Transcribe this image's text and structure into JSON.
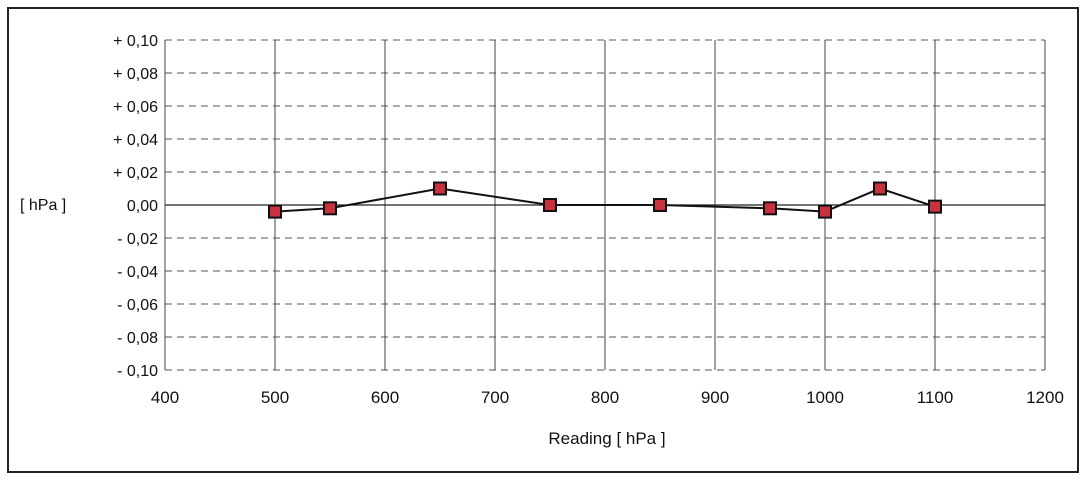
{
  "chart_data": {
    "type": "line",
    "title": "",
    "xlabel": "Reading [ hPa ]",
    "ylabel": "[ hPa ]",
    "xlim": [
      400,
      1200
    ],
    "ylim": [
      -0.1,
      0.1
    ],
    "x_ticks": [
      400,
      500,
      600,
      700,
      800,
      900,
      1000,
      1100,
      1200
    ],
    "y_ticks": [
      0.1,
      0.08,
      0.06,
      0.04,
      0.02,
      0.0,
      -0.02,
      -0.04,
      -0.06,
      -0.08,
      -0.1
    ],
    "y_tick_labels": [
      "+ 0,10",
      "+ 0,08",
      "+ 0,06",
      "+ 0,04",
      "+ 0,02",
      "0,00",
      "- 0,02",
      "- 0,04",
      "- 0,06",
      "- 0,08",
      "- 0,10"
    ],
    "grid": {
      "vertical": "solid",
      "horizontal": "dashed"
    },
    "legend": "none",
    "series": [
      {
        "x": [
          500,
          550,
          650,
          750,
          850,
          950,
          1000,
          1050,
          1100
        ],
        "y": [
          -0.004,
          -0.002,
          0.01,
          0.0,
          0.0,
          -0.002,
          -0.004,
          0.01,
          -0.001
        ],
        "line_color": "#111111",
        "marker": "square",
        "marker_fill": "#c8323f",
        "marker_edge": "#111111"
      }
    ]
  }
}
